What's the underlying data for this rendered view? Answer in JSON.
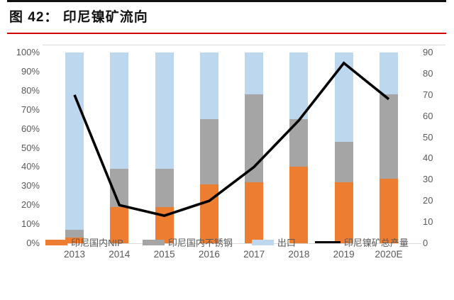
{
  "title": {
    "text": "图 42：  印尼镍矿流向"
  },
  "chart_data": {
    "type": "bar",
    "subtype": "stacked-percent-bars-with-line",
    "categories": [
      "2013",
      "2014",
      "2015",
      "2016",
      "2017",
      "2018",
      "2019",
      "2020E"
    ],
    "series": [
      {
        "name": "印尼国内NIP",
        "type": "bar",
        "axis": "left",
        "color": "#ED7D31",
        "values": [
          3,
          19,
          19,
          31,
          32,
          40,
          32,
          34
        ]
      },
      {
        "name": "印尼国内不锈钢",
        "type": "bar",
        "axis": "left",
        "color": "#A5A5A5",
        "values": [
          4,
          20,
          20,
          34,
          46,
          25,
          21,
          44
        ]
      },
      {
        "name": "出口",
        "type": "bar",
        "axis": "left",
        "color": "#BDD7EE",
        "values": [
          93,
          61,
          61,
          35,
          22,
          35,
          47,
          22
        ]
      },
      {
        "name": "印尼镍矿总产量",
        "type": "line",
        "axis": "right",
        "color": "#000000",
        "values": [
          70,
          18,
          13,
          20,
          36,
          58,
          85,
          68
        ]
      }
    ],
    "left_axis": {
      "min": 0,
      "max": 100,
      "unit": "%",
      "tick_labels": [
        "0%",
        "10%",
        "20%",
        "30%",
        "40%",
        "50%",
        "60%",
        "70%",
        "80%",
        "90%",
        "100%"
      ]
    },
    "right_axis": {
      "min": 0,
      "max": 90,
      "tick_labels": [
        "0",
        "10",
        "20",
        "30",
        "40",
        "50",
        "60",
        "70",
        "80",
        "90"
      ]
    },
    "legend_position": "bottom",
    "grid": false
  },
  "styles": {
    "title_underline_red": "#D00000",
    "top_rule_black": "#111111",
    "axis_text_gray": "#595959",
    "axis_line_gray": "#D9D9D9",
    "background": "#FFFFFF"
  }
}
